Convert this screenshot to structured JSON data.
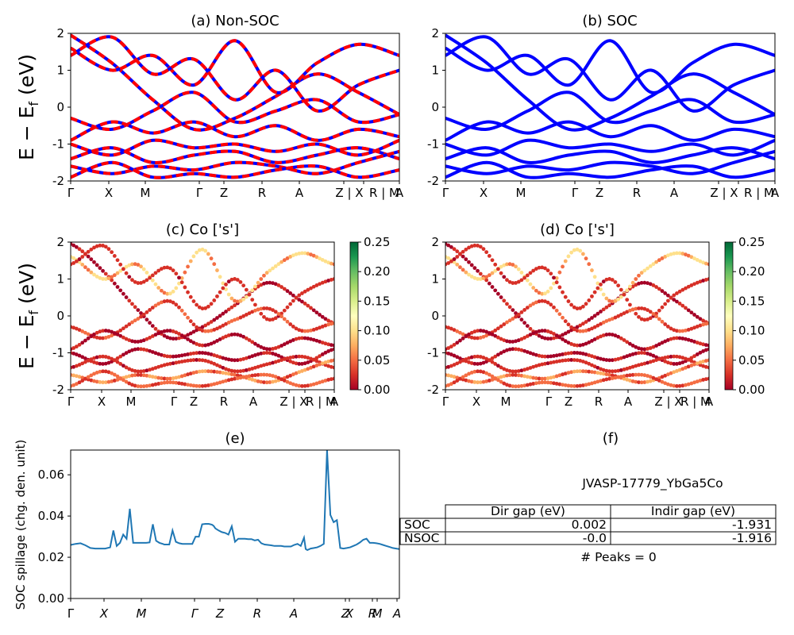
{
  "figure": {
    "material_id": "JVASP-17779_YbGa5Co",
    "peaks_text": "# Peaks = 0"
  },
  "colors": {
    "nsoc_line": "#0000ff",
    "soc_line": "#ff0000",
    "spillage_line": "#1f77b4",
    "colormap": [
      "#a50026",
      "#d73027",
      "#f46d43",
      "#fdae61",
      "#fee08b",
      "#ffffbf",
      "#d9ef8b",
      "#a6d96a",
      "#66bd63",
      "#1a9850",
      "#006837"
    ]
  },
  "labels": {
    "ylabel_bands": "E − E",
    "ylabel_sub": "f",
    "ylabel_unit": " (eV)",
    "ylabel_spillage": "SOC spillage (chg. den. unit)"
  },
  "chart_data": [
    {
      "id": "a",
      "type": "line",
      "title": "(a) Non-SOC",
      "ylim": [
        -2,
        2
      ],
      "yticks": [
        -2,
        -1,
        0,
        1,
        2
      ],
      "kpath": [
        "Γ",
        "X",
        "M",
        "Γ",
        "Z",
        "R",
        "A",
        "Z | X",
        "R | M",
        "A"
      ],
      "style": "blue solid overlaid with red dashed",
      "series": [
        {
          "values": [
            1.95,
            1.2,
            0.2,
            -0.6,
            -0.3,
            0.3,
            0.9,
            0.4,
            -0.2
          ]
        },
        {
          "values": [
            1.6,
            1.0,
            1.4,
            0.6,
            1.8,
            0.4,
            1.2,
            1.7,
            1.4
          ]
        },
        {
          "values": [
            1.4,
            1.9,
            0.9,
            1.3,
            0.2,
            1.0,
            -0.1,
            0.6,
            1.0
          ]
        },
        {
          "values": [
            -0.3,
            -0.6,
            -0.1,
            0.4,
            -0.4,
            -0.1,
            0.2,
            -0.4,
            -0.2
          ]
        },
        {
          "values": [
            -0.9,
            -0.4,
            -0.7,
            -0.4,
            -0.8,
            -0.5,
            -0.9,
            -0.6,
            -0.8
          ]
        },
        {
          "values": [
            -1.0,
            -1.3,
            -0.9,
            -1.1,
            -1.0,
            -1.2,
            -1.0,
            -1.3,
            -0.9
          ]
        },
        {
          "values": [
            -1.4,
            -1.1,
            -1.5,
            -1.3,
            -1.2,
            -1.5,
            -1.3,
            -1.1,
            -1.4
          ]
        },
        {
          "values": [
            -1.6,
            -1.8,
            -1.6,
            -1.7,
            -1.5,
            -1.6,
            -1.8,
            -1.5,
            -1.2
          ]
        },
        {
          "values": [
            -1.9,
            -1.5,
            -1.9,
            -1.8,
            -1.9,
            -1.7,
            -1.6,
            -1.9,
            -1.7
          ]
        }
      ]
    },
    {
      "id": "b",
      "type": "line",
      "title": "(b) SOC",
      "ylim": [
        -2,
        2
      ],
      "yticks": [
        -2,
        -1,
        0,
        1,
        2
      ],
      "kpath": [
        "Γ",
        "X",
        "M",
        "Γ",
        "Z",
        "R",
        "A",
        "Z | X",
        "R | M",
        "A"
      ],
      "style": "blue solid",
      "series": [
        {
          "values": [
            1.95,
            1.2,
            0.2,
            -0.6,
            -0.3,
            0.3,
            0.9,
            0.4,
            -0.2
          ]
        },
        {
          "values": [
            1.6,
            1.0,
            1.4,
            0.6,
            1.8,
            0.4,
            1.2,
            1.7,
            1.4
          ]
        },
        {
          "values": [
            1.4,
            1.9,
            0.9,
            1.3,
            0.2,
            1.0,
            -0.1,
            0.6,
            1.0
          ]
        },
        {
          "values": [
            -0.3,
            -0.6,
            -0.1,
            0.4,
            -0.4,
            -0.1,
            0.2,
            -0.4,
            -0.2
          ]
        },
        {
          "values": [
            -0.9,
            -0.4,
            -0.7,
            -0.4,
            -0.8,
            -0.5,
            -0.9,
            -0.6,
            -0.8
          ]
        },
        {
          "values": [
            -1.0,
            -1.3,
            -0.9,
            -1.1,
            -1.0,
            -1.2,
            -1.0,
            -1.3,
            -0.9
          ]
        },
        {
          "values": [
            -1.4,
            -1.1,
            -1.5,
            -1.3,
            -1.2,
            -1.5,
            -1.3,
            -1.1,
            -1.4
          ]
        },
        {
          "values": [
            -1.6,
            -1.8,
            -1.6,
            -1.7,
            -1.5,
            -1.6,
            -1.8,
            -1.5,
            -1.2
          ]
        },
        {
          "values": [
            -1.9,
            -1.5,
            -1.9,
            -1.8,
            -1.9,
            -1.7,
            -1.6,
            -1.9,
            -1.7
          ]
        }
      ]
    },
    {
      "id": "c",
      "type": "scatter",
      "title": "(c)  Co ['s']",
      "ylim": [
        -2,
        2
      ],
      "yticks": [
        -2,
        -1,
        0,
        1,
        2
      ],
      "kpath": [
        "Γ",
        "X",
        "M",
        "Γ",
        "Z",
        "R",
        "A",
        "Z | X",
        "R | M",
        "A"
      ],
      "colorbar": {
        "range": [
          0.0,
          0.25
        ],
        "ticks": [
          "0.00",
          "0.05",
          "0.10",
          "0.15",
          "0.20",
          "0.25"
        ]
      },
      "series": [
        {
          "values": [
            1.95,
            1.2,
            0.2,
            -0.6,
            -0.3,
            0.3,
            0.9,
            0.4,
            -0.2
          ],
          "weight": 0.01
        },
        {
          "values": [
            1.6,
            1.0,
            1.4,
            0.6,
            1.8,
            0.4,
            1.2,
            1.7,
            1.4
          ],
          "weight": 0.08
        },
        {
          "values": [
            1.4,
            1.9,
            0.9,
            1.3,
            0.2,
            1.0,
            -0.1,
            0.6,
            1.0
          ],
          "weight": 0.02
        },
        {
          "values": [
            -0.3,
            -0.6,
            -0.1,
            0.4,
            -0.4,
            -0.1,
            0.2,
            -0.4,
            -0.2
          ],
          "weight": 0.03
        },
        {
          "values": [
            -0.9,
            -0.4,
            -0.7,
            -0.4,
            -0.8,
            -0.5,
            -0.9,
            -0.6,
            -0.8
          ],
          "weight": 0.01
        },
        {
          "values": [
            -1.0,
            -1.3,
            -0.9,
            -1.1,
            -1.0,
            -1.2,
            -1.0,
            -1.3,
            -0.9
          ],
          "weight": 0.01
        },
        {
          "values": [
            -1.4,
            -1.1,
            -1.5,
            -1.3,
            -1.2,
            -1.5,
            -1.3,
            -1.1,
            -1.4
          ],
          "weight": 0.02
        },
        {
          "values": [
            -1.6,
            -1.8,
            -1.6,
            -1.7,
            -1.5,
            -1.6,
            -1.8,
            -1.5,
            -1.2
          ],
          "weight": 0.05
        },
        {
          "values": [
            -1.9,
            -1.5,
            -1.9,
            -1.8,
            -1.9,
            -1.7,
            -1.6,
            -1.9,
            -1.7
          ],
          "weight": 0.04
        }
      ]
    },
    {
      "id": "d",
      "type": "scatter",
      "title": "(d) Co ['s']",
      "ylim": [
        -2,
        2
      ],
      "yticks": [
        -2,
        -1,
        0,
        1,
        2
      ],
      "kpath": [
        "Γ",
        "X",
        "M",
        "Γ",
        "Z",
        "R",
        "A",
        "Z | X",
        "R | M",
        "A"
      ],
      "colorbar": {
        "range": [
          0.0,
          0.25
        ],
        "ticks": [
          "0.00",
          "0.05",
          "0.10",
          "0.15",
          "0.20",
          "0.25"
        ]
      },
      "series": [
        {
          "values": [
            1.95,
            1.2,
            0.2,
            -0.6,
            -0.3,
            0.3,
            0.9,
            0.4,
            -0.2
          ],
          "weight": 0.01
        },
        {
          "values": [
            1.6,
            1.0,
            1.4,
            0.6,
            1.8,
            0.4,
            1.2,
            1.7,
            1.4
          ],
          "weight": 0.08
        },
        {
          "values": [
            1.4,
            1.9,
            0.9,
            1.3,
            0.2,
            1.0,
            -0.1,
            0.6,
            1.0
          ],
          "weight": 0.02
        },
        {
          "values": [
            -0.3,
            -0.6,
            -0.1,
            0.4,
            -0.4,
            -0.1,
            0.2,
            -0.4,
            -0.2
          ],
          "weight": 0.03
        },
        {
          "values": [
            -0.9,
            -0.4,
            -0.7,
            -0.4,
            -0.8,
            -0.5,
            -0.9,
            -0.6,
            -0.8
          ],
          "weight": 0.01
        },
        {
          "values": [
            -1.0,
            -1.3,
            -0.9,
            -1.1,
            -1.0,
            -1.2,
            -1.0,
            -1.3,
            -0.9
          ],
          "weight": 0.01
        },
        {
          "values": [
            -1.4,
            -1.1,
            -1.5,
            -1.3,
            -1.2,
            -1.5,
            -1.3,
            -1.1,
            -1.4
          ],
          "weight": 0.02
        },
        {
          "values": [
            -1.6,
            -1.8,
            -1.6,
            -1.7,
            -1.5,
            -1.6,
            -1.8,
            -1.5,
            -1.2
          ],
          "weight": 0.05
        },
        {
          "values": [
            -1.9,
            -1.5,
            -1.9,
            -1.8,
            -1.9,
            -1.7,
            -1.6,
            -1.9,
            -1.7
          ],
          "weight": 0.04
        }
      ]
    },
    {
      "id": "e",
      "type": "line",
      "title": "(e)",
      "ylabel": "SOC spillage (chg. den. unit)",
      "ylim": [
        0.0,
        0.072
      ],
      "yticks": [
        "0.00",
        "0.02",
        "0.04",
        "0.06"
      ],
      "xticks": [
        "Γ",
        "X",
        "M",
        "Γ",
        "Z",
        "R",
        "A",
        "Z",
        "X",
        "R",
        "M",
        "A"
      ],
      "x": [
        0,
        3,
        6,
        9,
        12,
        15,
        18,
        21,
        24,
        26,
        28,
        30,
        32,
        34,
        35,
        36,
        38,
        40,
        42,
        44,
        46,
        48,
        50,
        52,
        54,
        56,
        57,
        58,
        60,
        62,
        64,
        66,
        68,
        70,
        72,
        74,
        76,
        78,
        80,
        82,
        84,
        86,
        87,
        88,
        90,
        92,
        94,
        96,
        98,
        100,
        102,
        104,
        106,
        108,
        110,
        112,
        114,
        116,
        118,
        120,
        122,
        124,
        126,
        128,
        130,
        132,
        134,
        136,
        138,
        140,
        142,
        143,
        144,
        146,
        148,
        150,
        152,
        154,
        156,
        158,
        160,
        162,
        164,
        166,
        168,
        170,
        172,
        174,
        176,
        178,
        180,
        182,
        184,
        186,
        188,
        190,
        192,
        194,
        196,
        198,
        200
      ],
      "values": [
        0.026,
        0.0265,
        0.0268,
        0.0258,
        0.0245,
        0.0242,
        0.0242,
        0.0242,
        0.0248,
        0.033,
        0.0255,
        0.027,
        0.031,
        0.029,
        0.036,
        0.0435,
        0.027,
        0.027,
        0.027,
        0.027,
        0.027,
        0.0272,
        0.036,
        0.028,
        0.027,
        0.0265,
        0.0262,
        0.0262,
        0.0262,
        0.033,
        0.0275,
        0.0268,
        0.0265,
        0.0265,
        0.0265,
        0.0265,
        0.03,
        0.03,
        0.036,
        0.0362,
        0.0362,
        0.0358,
        0.0352,
        0.034,
        0.033,
        0.0322,
        0.0318,
        0.031,
        0.035,
        0.0275,
        0.029,
        0.029,
        0.029,
        0.0288,
        0.0288,
        0.0282,
        0.0285,
        0.0268,
        0.0262,
        0.026,
        0.0258,
        0.0255,
        0.0255,
        0.0255,
        0.0252,
        0.0252,
        0.0252,
        0.026,
        0.0265,
        0.0255,
        0.0295,
        0.024,
        0.0235,
        0.0242,
        0.0245,
        0.0248,
        0.0255,
        0.0265,
        0.072,
        0.0405,
        0.037,
        0.038,
        0.0245,
        0.0242,
        0.0245,
        0.0248,
        0.0255,
        0.0262,
        0.0272,
        0.0285,
        0.029,
        0.027,
        0.027,
        0.0268,
        0.0265,
        0.026,
        0.0255,
        0.025,
        0.0245,
        0.0242,
        0.024
      ]
    }
  ],
  "gap_table": {
    "title": "(f)",
    "columns": [
      "Dir gap (eV)",
      "Indir gap (eV)"
    ],
    "rows": [
      {
        "label": "SOC",
        "dir": "0.002",
        "indir": "-1.931"
      },
      {
        "label": "NSOC",
        "dir": "-0.0",
        "indir": "-1.916"
      }
    ]
  }
}
